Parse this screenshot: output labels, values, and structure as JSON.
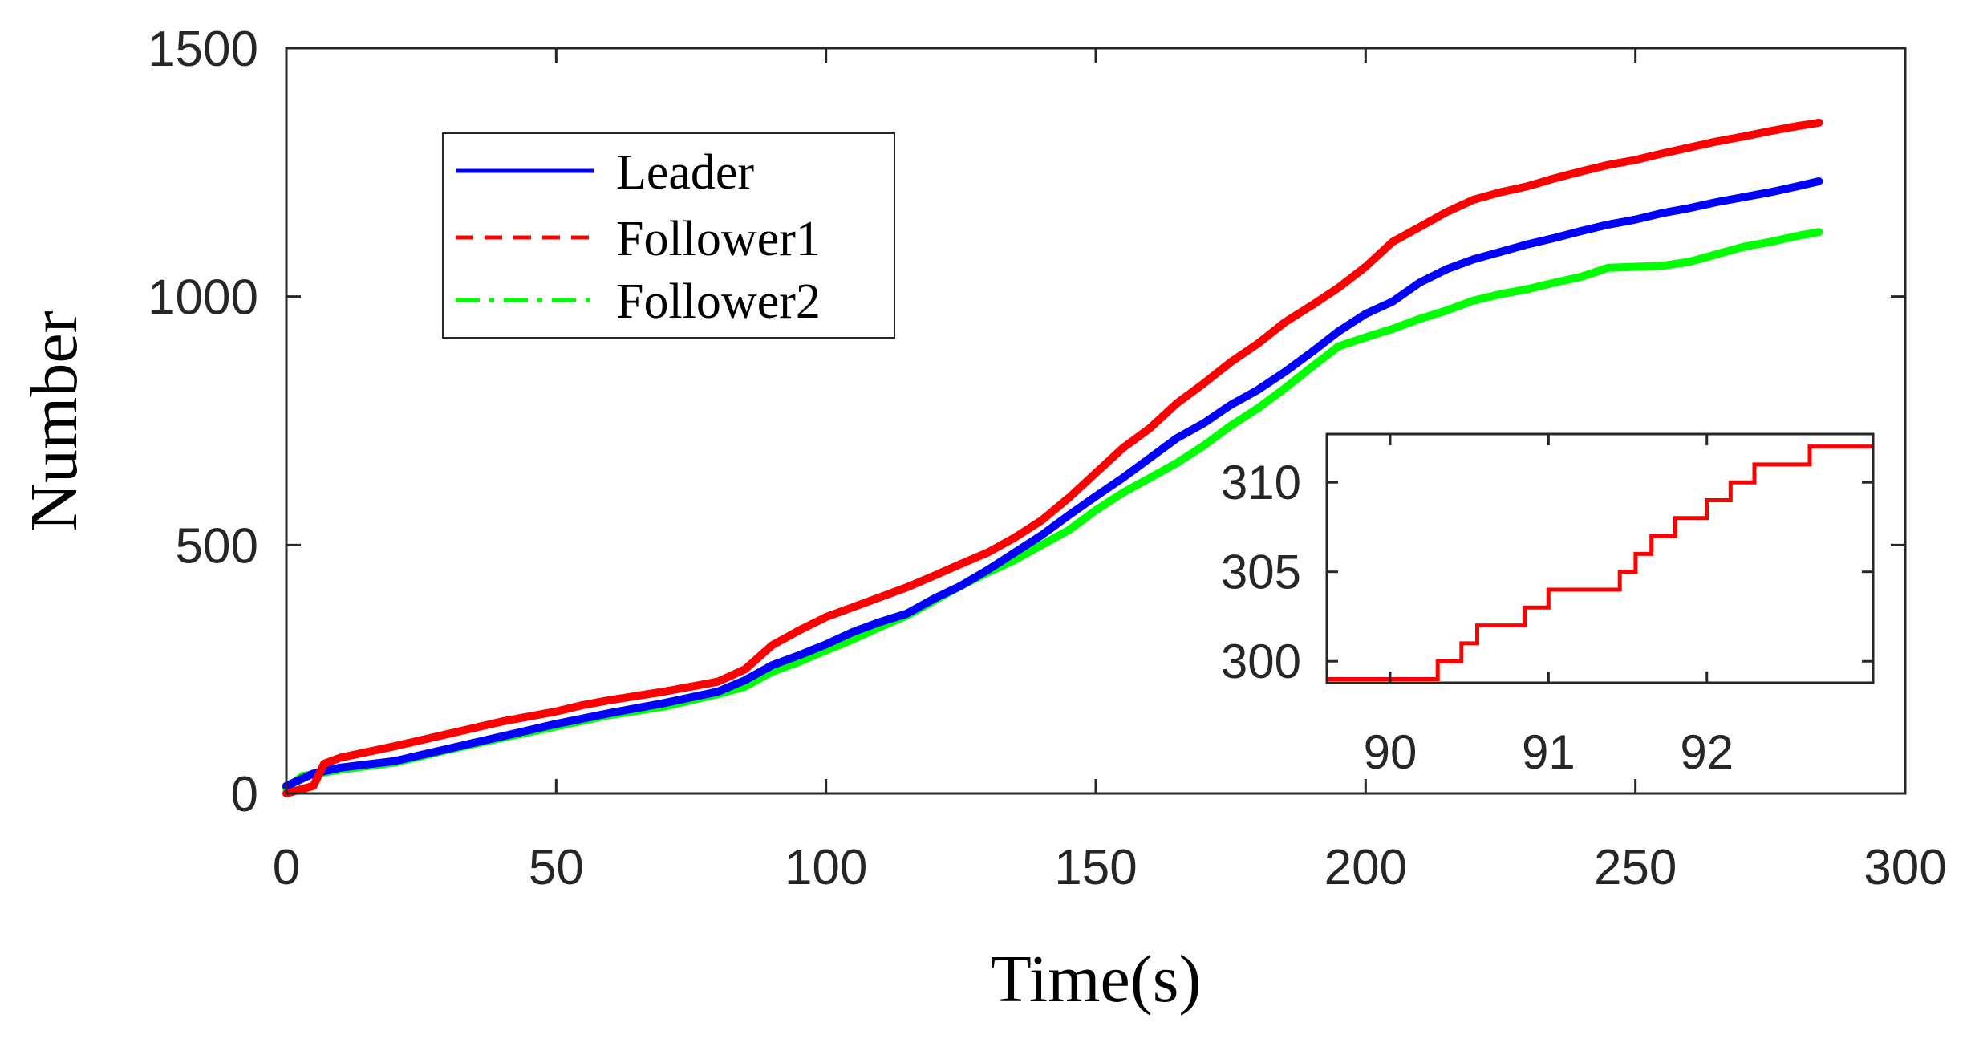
{
  "chart_data": [
    {
      "type": "line",
      "title": "",
      "xlabel": "Time(s)",
      "ylabel": "Number",
      "xlim": [
        0,
        300
      ],
      "ylim": [
        0,
        1500
      ],
      "xticks": [
        0,
        50,
        100,
        150,
        200,
        250,
        300
      ],
      "yticks": [
        0,
        500,
        1000,
        1500
      ],
      "grid": false,
      "legend_position": "top-left",
      "series": [
        {
          "name": "Leader",
          "color": "#0000ff",
          "dash": "solid",
          "x": [
            0,
            5,
            10,
            20,
            30,
            40,
            50,
            60,
            70,
            80,
            85,
            90,
            95,
            100,
            105,
            110,
            115,
            120,
            125,
            130,
            135,
            140,
            145,
            150,
            155,
            160,
            165,
            170,
            175,
            180,
            185,
            190,
            195,
            200,
            205,
            210,
            215,
            220,
            225,
            230,
            235,
            240,
            245,
            250,
            255,
            260,
            265,
            270,
            275,
            280,
            284
          ],
          "y": [
            15,
            40,
            52,
            65,
            90,
            115,
            140,
            162,
            182,
            205,
            228,
            258,
            278,
            300,
            325,
            345,
            362,
            392,
            418,
            450,
            485,
            520,
            560,
            598,
            635,
            675,
            715,
            745,
            782,
            812,
            848,
            888,
            930,
            965,
            990,
            1028,
            1055,
            1075,
            1090,
            1105,
            1118,
            1132,
            1145,
            1155,
            1168,
            1178,
            1190,
            1200,
            1210,
            1222,
            1232
          ]
        },
        {
          "name": "Follower1",
          "color": "#ff0000",
          "dash": "dashed",
          "x": [
            0,
            5,
            7,
            10,
            20,
            30,
            40,
            50,
            55,
            60,
            70,
            80,
            85,
            90,
            95,
            100,
            105,
            110,
            115,
            120,
            125,
            130,
            135,
            140,
            145,
            150,
            155,
            160,
            165,
            170,
            175,
            180,
            185,
            190,
            195,
            200,
            205,
            210,
            215,
            220,
            225,
            230,
            235,
            240,
            245,
            250,
            255,
            260,
            265,
            270,
            275,
            280,
            284
          ],
          "y": [
            0,
            15,
            60,
            72,
            95,
            120,
            145,
            165,
            178,
            188,
            205,
            225,
            250,
            298,
            328,
            355,
            375,
            395,
            415,
            438,
            462,
            485,
            515,
            550,
            595,
            645,
            695,
            735,
            785,
            825,
            868,
            905,
            948,
            982,
            1018,
            1060,
            1110,
            1140,
            1170,
            1195,
            1210,
            1222,
            1238,
            1252,
            1265,
            1275,
            1288,
            1300,
            1312,
            1322,
            1333,
            1343,
            1350
          ]
        },
        {
          "name": "Follower2",
          "color": "#00ff00",
          "dash": "dashdot",
          "x": [
            0,
            3,
            10,
            20,
            30,
            40,
            50,
            60,
            70,
            80,
            85,
            90,
            95,
            100,
            105,
            110,
            115,
            120,
            125,
            130,
            135,
            140,
            145,
            150,
            155,
            160,
            165,
            170,
            175,
            180,
            185,
            190,
            195,
            200,
            205,
            210,
            215,
            220,
            225,
            230,
            235,
            240,
            245,
            250,
            255,
            260,
            265,
            270,
            275,
            280,
            284
          ],
          "y": [
            10,
            35,
            48,
            62,
            88,
            112,
            135,
            158,
            175,
            200,
            215,
            245,
            265,
            288,
            310,
            335,
            358,
            388,
            418,
            445,
            470,
            500,
            530,
            570,
            605,
            635,
            665,
            700,
            740,
            775,
            815,
            858,
            900,
            918,
            935,
            955,
            972,
            992,
            1005,
            1015,
            1028,
            1040,
            1058,
            1060,
            1062,
            1070,
            1085,
            1100,
            1110,
            1122,
            1130
          ]
        }
      ]
    },
    {
      "type": "line",
      "title": "",
      "xlabel": "",
      "ylabel": "",
      "xlim": [
        89.6,
        93.05
      ],
      "ylim": [
        298.8,
        312.7
      ],
      "xticks": [
        90,
        91,
        92
      ],
      "yticks": [
        300,
        305,
        310
      ],
      "grid": false,
      "series": [
        {
          "name": "Follower1",
          "color": "#ff0000",
          "step": true,
          "x": [
            89.6,
            90.3,
            90.45,
            90.55,
            90.7,
            90.85,
            91.0,
            91.3,
            91.45,
            91.55,
            91.65,
            91.8,
            91.95,
            92.0,
            92.15,
            92.3,
            92.45,
            92.65,
            93.05
          ],
          "y": [
            299,
            300,
            301,
            302,
            302,
            303,
            304,
            304,
            305,
            306,
            307,
            308,
            308,
            309,
            310,
            311,
            311,
            312,
            312
          ]
        }
      ]
    }
  ]
}
